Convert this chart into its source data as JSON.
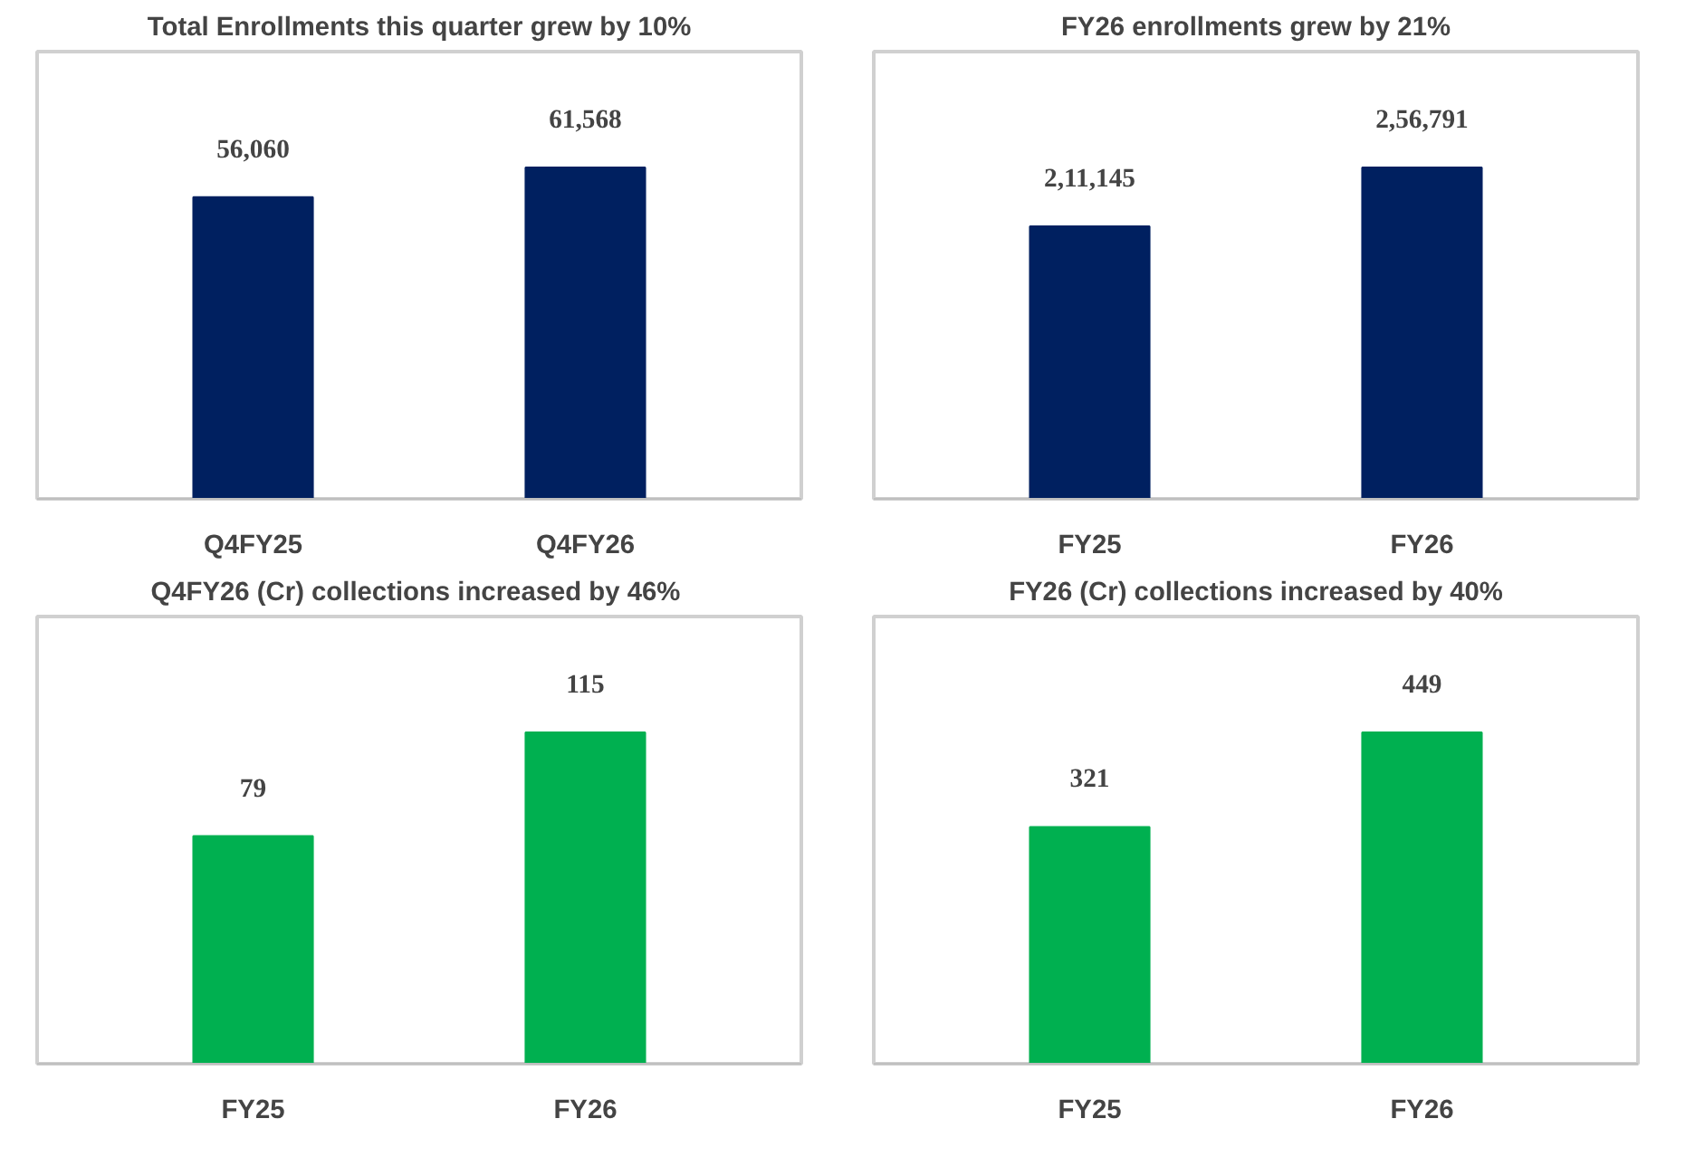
{
  "chart_data": [
    {
      "type": "bar",
      "title": "Total Enrollments this quarter grew by 10%",
      "categories": [
        "Q4FY25",
        "Q4FY26"
      ],
      "values": [
        56060,
        61568
      ],
      "value_labels": [
        "56,060",
        "61,568"
      ],
      "color": "#002060",
      "grid": false
    },
    {
      "type": "bar",
      "title": "FY26 enrollments grew by 21%",
      "categories": [
        "FY25",
        "FY26"
      ],
      "values": [
        211145,
        256791
      ],
      "value_labels": [
        "2,11,145",
        "2,56,791"
      ],
      "color": "#002060",
      "grid": false
    },
    {
      "type": "bar",
      "title": "Q4FY26 (Cr) collections  increased by 46%",
      "categories": [
        "FY25",
        "FY26"
      ],
      "values": [
        79,
        115
      ],
      "value_labels": [
        "79",
        "115"
      ],
      "color": "#00b050",
      "grid": false
    },
    {
      "type": "bar",
      "title": "FY26 (Cr) collections increased by 40%",
      "categories": [
        "FY25",
        "FY26"
      ],
      "values": [
        321,
        449
      ],
      "value_labels": [
        "321",
        "449"
      ],
      "color": "#00b050",
      "grid": false
    }
  ]
}
